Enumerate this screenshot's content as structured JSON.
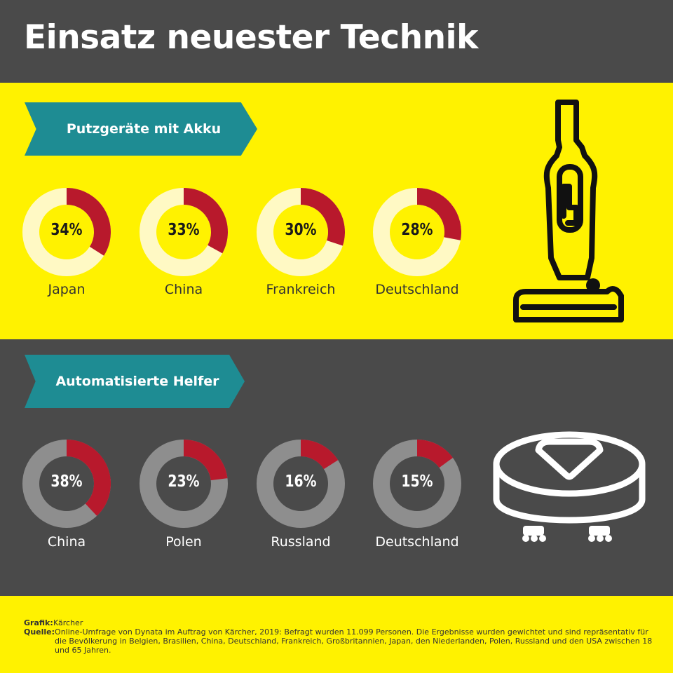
{
  "title": "Einsatz neuester Technik",
  "colors": {
    "yellow": "#fff200",
    "dark": "#4a4a4a",
    "teal": "#1e8c93",
    "highlight": "#b8192c",
    "ring_light": "#fff9c4",
    "ring_dark": "#8e8e8e"
  },
  "sections": [
    {
      "heading": "Putzgeräte mit Akku",
      "icon": "cordless-vacuum-icon"
    },
    {
      "heading": "Automatisierte Helfer",
      "icon": "robot-vacuum-icon"
    }
  ],
  "chart_data": [
    {
      "type": "pie",
      "title": "Putzgeräte mit Akku",
      "categories": [
        "Japan",
        "China",
        "Frankreich",
        "Deutschland"
      ],
      "values": [
        34,
        33,
        30,
        28
      ],
      "labels": [
        "34%",
        "33%",
        "30%",
        "28%"
      ],
      "unit": "%"
    },
    {
      "type": "pie",
      "title": "Automatisierte Helfer",
      "categories": [
        "China",
        "Polen",
        "Russland",
        "Deutschland"
      ],
      "values": [
        38,
        23,
        16,
        15
      ],
      "labels": [
        "38%",
        "23%",
        "16%",
        "15%"
      ],
      "unit": "%"
    }
  ],
  "footer": {
    "grafik_label": "Grafik:",
    "grafik_value": "Kärcher",
    "quelle_label": "Quelle:",
    "quelle_value": "Online-Umfrage von Dynata im Auftrag von Kärcher, 2019: Befragt wurden 11.099 Personen. Die Ergebnisse wurden gewichtet und sind repräsentativ für die Bevölkerung in Belgien, Brasilien, China, Deutschland, Frankreich, Großbritannien, Japan, den Niederlanden, Polen, Russland und den USA zwischen 18 und 65 Jahren."
  }
}
